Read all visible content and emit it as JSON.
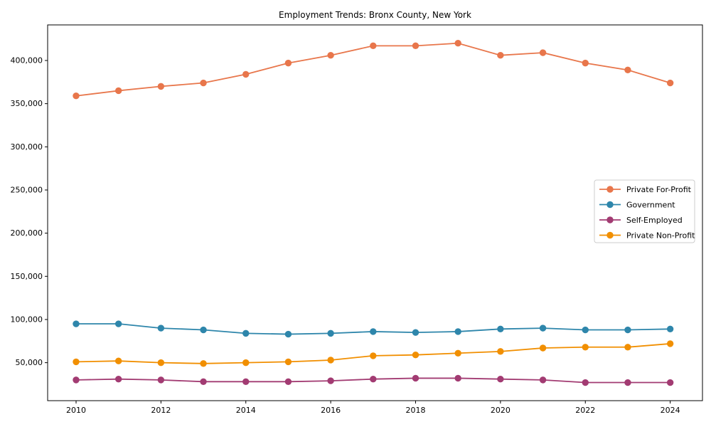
{
  "chart_data": {
    "type": "line",
    "title": "Employment Trends: Bronx County, New York",
    "xlabel": "",
    "ylabel": "",
    "x": [
      2010,
      2011,
      2012,
      2013,
      2014,
      2015,
      2016,
      2017,
      2018,
      2019,
      2020,
      2021,
      2022,
      2023,
      2024
    ],
    "series": [
      {
        "name": "Private For-Profit",
        "color": "#e8764b",
        "values": [
          359000,
          365000,
          370000,
          374000,
          384000,
          397000,
          406000,
          417000,
          417000,
          420000,
          406000,
          409000,
          397000,
          389000,
          374000
        ]
      },
      {
        "name": "Government",
        "color": "#2e86ab",
        "values": [
          95000,
          95000,
          90000,
          88000,
          84000,
          83000,
          84000,
          86000,
          85000,
          86000,
          89000,
          90000,
          88000,
          88000,
          89000
        ]
      },
      {
        "name": "Self-Employed",
        "color": "#a23b72",
        "values": [
          30000,
          31000,
          30000,
          28000,
          28000,
          28000,
          29000,
          31000,
          32000,
          32000,
          31000,
          30000,
          27000,
          27000,
          27000
        ]
      },
      {
        "name": "Private Non-Profit",
        "color": "#f18f01",
        "values": [
          51000,
          52000,
          50000,
          49000,
          50000,
          51000,
          53000,
          58000,
          59000,
          61000,
          63000,
          67000,
          68000,
          68000,
          72000
        ]
      }
    ],
    "xticks": [
      2010,
      2012,
      2014,
      2016,
      2018,
      2020,
      2022,
      2024
    ],
    "xtick_labels": [
      "2010",
      "2012",
      "2014",
      "2016",
      "2018",
      "2020",
      "2022",
      "2024"
    ],
    "yticks": [
      50000,
      100000,
      150000,
      200000,
      250000,
      300000,
      350000,
      400000
    ],
    "ytick_labels": [
      "50,000",
      "100,000",
      "150,000",
      "200,000",
      "250,000",
      "300,000",
      "350,000",
      "400,000"
    ],
    "xlim": [
      2009.33,
      2024.76
    ],
    "ylim": [
      6000,
      441200
    ],
    "grid": false,
    "legend_position": "center-right",
    "legend_entries": [
      "Private For-Profit",
      "Government",
      "Self-Employed",
      "Private Non-Profit"
    ],
    "axis_color": "#000000",
    "legend_border_color": "#cccccc",
    "background_color": "#ffffff"
  }
}
